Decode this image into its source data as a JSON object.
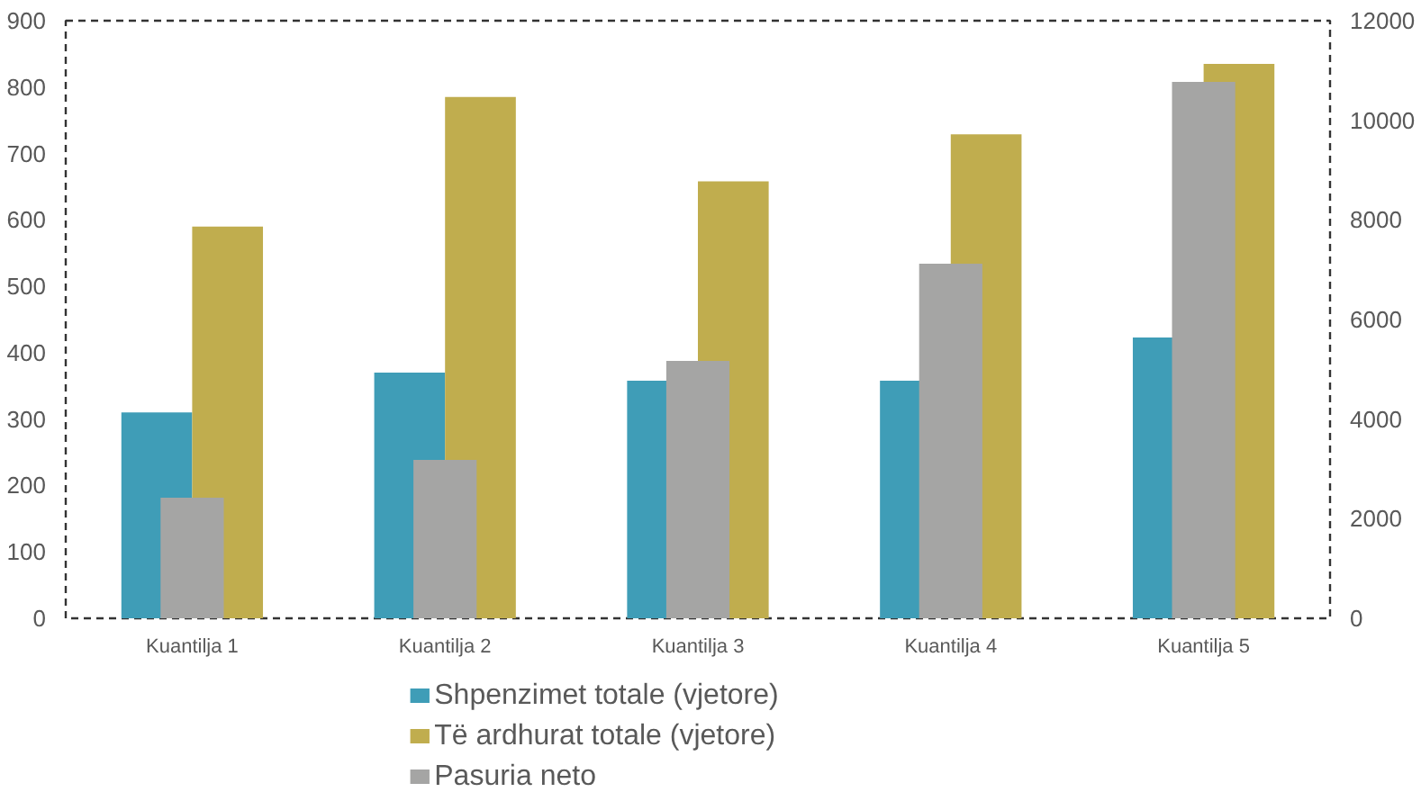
{
  "chart_data": {
    "type": "bar",
    "categories": [
      "Kuantilja 1",
      "Kuantilja 2",
      "Kuantilja 3",
      "Kuantilja 4",
      "Kuantilja 5"
    ],
    "series": [
      {
        "name": "Shpenzimet totale (vjetore)",
        "color": "#3f9db7",
        "values": [
          310,
          370,
          358,
          358,
          423
        ]
      },
      {
        "name": "Të ardhurat totale (vjetore)",
        "color": "#c0ad4e",
        "values": [
          590,
          785,
          658,
          729,
          835
        ]
      },
      {
        "name": "Pasuria neto",
        "color": "#a5a5a4",
        "axis": "y2",
        "values": [
          2420,
          3180,
          5170,
          7120,
          10770
        ]
      }
    ],
    "ylim": [
      0,
      900
    ],
    "yticks": [
      0,
      100,
      200,
      300,
      400,
      500,
      600,
      700,
      800,
      900
    ],
    "y2lim": [
      0,
      12000
    ],
    "y2ticks": [
      0,
      2000,
      4000,
      6000,
      8000,
      10000,
      12000
    ],
    "grid": false,
    "legend": "bottom"
  }
}
